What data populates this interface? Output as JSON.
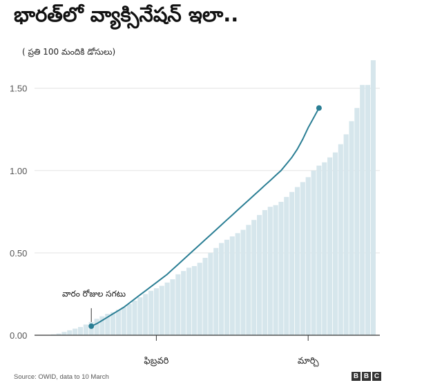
{
  "title": "భారత్‌లో వ్యాక్సినేషన్ ఇలా..",
  "subtitle": "( ప్రతి 100 మందికి డోసులు)",
  "source": "Source: OWID, data to 10 March",
  "logo": [
    "B",
    "B",
    "C"
  ],
  "colors": {
    "bar": "#d6e6ec",
    "line": "#2a7e94",
    "axis": "#333333",
    "grid": "#e3e3e3"
  },
  "chart_data": {
    "type": "bar",
    "ylim": [
      0,
      1.7
    ],
    "yticks": [
      {
        "value": 0,
        "label": "0.00"
      },
      {
        "value": 0.5,
        "label": "0.50"
      },
      {
        "value": 1.0,
        "label": "1.00"
      },
      {
        "value": 1.5,
        "label": "1.50"
      }
    ],
    "xticks": [
      {
        "index": 21,
        "label": "ఫిబ్రవరి"
      },
      {
        "index": 49,
        "label": "మార్చి"
      }
    ],
    "annotation": {
      "text": "వారం రోజుల సగటు",
      "index": 9
    },
    "series": [
      {
        "values": [
          0.0,
          0.002,
          0.005,
          0.01,
          0.02,
          0.03,
          0.04,
          0.05,
          0.065,
          0.08,
          0.1,
          0.115,
          0.13,
          0.14,
          0.155,
          0.17,
          0.19,
          0.21,
          0.23,
          0.25,
          0.27,
          0.285,
          0.3,
          0.32,
          0.34,
          0.37,
          0.39,
          0.41,
          0.42,
          0.44,
          0.47,
          0.5,
          0.53,
          0.56,
          0.58,
          0.6,
          0.62,
          0.64,
          0.67,
          0.7,
          0.73,
          0.76,
          0.78,
          0.79,
          0.81,
          0.84,
          0.87,
          0.9,
          0.93,
          0.96,
          1.0,
          1.03,
          1.05,
          1.08,
          1.11,
          1.16,
          1.22,
          1.3,
          1.38,
          1.52,
          1.52,
          1.67
        ]
      },
      {
        "values": [
          0.055,
          0.07,
          0.09,
          0.11,
          0.13,
          0.15,
          0.17,
          0.195,
          0.22,
          0.245,
          0.27,
          0.295,
          0.32,
          0.345,
          0.37,
          0.4,
          0.43,
          0.46,
          0.49,
          0.52,
          0.55,
          0.58,
          0.61,
          0.64,
          0.67,
          0.7,
          0.73,
          0.76,
          0.79,
          0.82,
          0.85,
          0.88,
          0.91,
          0.94,
          0.97,
          1.0,
          1.04,
          1.08,
          1.13,
          1.19,
          1.26,
          1.32,
          1.38
        ],
        "start_index": 9
      }
    ]
  }
}
